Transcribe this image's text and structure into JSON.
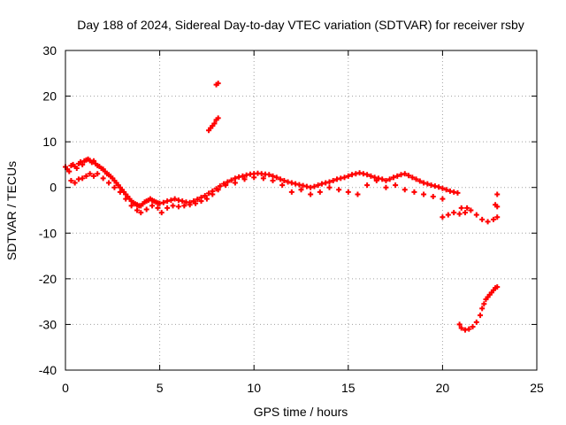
{
  "chart_data": {
    "type": "scatter",
    "title": "Day 188 of 2024, Sidereal Day-to-day VTEC variation (SDTVAR) for receiver rsby",
    "xlabel": "GPS time / hours",
    "ylabel": "SDTVAR / TECUs",
    "xlim": [
      0,
      25
    ],
    "ylim": [
      -40,
      30
    ],
    "xticks": [
      0,
      5,
      10,
      15,
      20,
      25
    ],
    "yticks": [
      -40,
      -30,
      -20,
      -10,
      0,
      10,
      20,
      30
    ],
    "grid": true,
    "marker": "+",
    "series": [
      {
        "name": "SDTVAR",
        "color": "#ff0000",
        "points": [
          [
            0.0,
            4.5
          ],
          [
            0.1,
            4.0
          ],
          [
            0.2,
            3.5
          ],
          [
            0.3,
            4.8
          ],
          [
            0.4,
            5.0
          ],
          [
            0.5,
            4.6
          ],
          [
            0.6,
            4.2
          ],
          [
            0.7,
            5.2
          ],
          [
            0.8,
            5.6
          ],
          [
            0.9,
            5.0
          ],
          [
            1.0,
            5.8
          ],
          [
            1.1,
            6.0
          ],
          [
            1.2,
            6.2
          ],
          [
            1.3,
            5.9
          ],
          [
            1.4,
            5.5
          ],
          [
            1.5,
            5.8
          ],
          [
            1.6,
            5.2
          ],
          [
            1.7,
            4.8
          ],
          [
            1.8,
            4.6
          ],
          [
            1.9,
            4.2
          ],
          [
            2.0,
            4.0
          ],
          [
            2.1,
            3.5
          ],
          [
            2.2,
            3.0
          ],
          [
            2.3,
            2.8
          ],
          [
            2.4,
            2.4
          ],
          [
            2.5,
            2.0
          ],
          [
            2.6,
            1.5
          ],
          [
            2.7,
            1.0
          ],
          [
            2.8,
            0.5
          ],
          [
            2.9,
            0.0
          ],
          [
            3.0,
            -0.5
          ],
          [
            3.1,
            -1.0
          ],
          [
            3.2,
            -1.5
          ],
          [
            3.3,
            -2.0
          ],
          [
            3.4,
            -2.5
          ],
          [
            3.5,
            -3.0
          ],
          [
            3.6,
            -3.3
          ],
          [
            3.7,
            -3.6
          ],
          [
            3.8,
            -3.8
          ],
          [
            3.9,
            -4.0
          ],
          [
            4.0,
            -4.0
          ],
          [
            4.1,
            -3.6
          ],
          [
            4.2,
            -3.2
          ],
          [
            4.3,
            -3.0
          ],
          [
            4.4,
            -2.8
          ],
          [
            4.5,
            -2.5
          ],
          [
            4.6,
            -2.8
          ],
          [
            4.7,
            -3.0
          ],
          [
            4.8,
            -3.2
          ],
          [
            4.9,
            -3.4
          ],
          [
            5.0,
            -3.5
          ],
          [
            5.2,
            -3.3
          ],
          [
            5.4,
            -3.0
          ],
          [
            5.6,
            -2.8
          ],
          [
            5.8,
            -2.5
          ],
          [
            6.0,
            -2.8
          ],
          [
            6.2,
            -3.0
          ],
          [
            6.4,
            -3.2
          ],
          [
            6.6,
            -3.3
          ],
          [
            6.8,
            -3.0
          ],
          [
            7.0,
            -2.6
          ],
          [
            7.2,
            -2.2
          ],
          [
            7.4,
            -1.8
          ],
          [
            7.6,
            -1.3
          ],
          [
            7.8,
            -0.8
          ],
          [
            8.0,
            -0.3
          ],
          [
            8.2,
            0.3
          ],
          [
            8.4,
            0.8
          ],
          [
            8.6,
            1.2
          ],
          [
            8.8,
            1.6
          ],
          [
            9.0,
            2.0
          ],
          [
            9.2,
            2.3
          ],
          [
            9.4,
            2.5
          ],
          [
            9.6,
            2.7
          ],
          [
            9.8,
            2.9
          ],
          [
            10.0,
            3.0
          ],
          [
            10.2,
            3.1
          ],
          [
            10.4,
            3.0
          ],
          [
            10.6,
            2.9
          ],
          [
            10.8,
            2.8
          ],
          [
            11.0,
            2.5
          ],
          [
            11.2,
            2.2
          ],
          [
            11.4,
            1.8
          ],
          [
            11.6,
            1.5
          ],
          [
            11.8,
            1.2
          ],
          [
            12.0,
            1.0
          ],
          [
            12.2,
            0.8
          ],
          [
            12.4,
            0.6
          ],
          [
            12.6,
            0.4
          ],
          [
            12.8,
            0.2
          ],
          [
            13.0,
            0.0
          ],
          [
            13.2,
            0.2
          ],
          [
            13.4,
            0.5
          ],
          [
            13.6,
            0.8
          ],
          [
            13.8,
            1.0
          ],
          [
            14.0,
            1.2
          ],
          [
            14.2,
            1.5
          ],
          [
            14.4,
            1.8
          ],
          [
            14.6,
            2.0
          ],
          [
            14.8,
            2.2
          ],
          [
            15.0,
            2.5
          ],
          [
            15.2,
            2.8
          ],
          [
            15.4,
            3.0
          ],
          [
            15.6,
            3.2
          ],
          [
            15.8,
            3.0
          ],
          [
            16.0,
            2.8
          ],
          [
            16.2,
            2.5
          ],
          [
            16.4,
            2.2
          ],
          [
            16.6,
            2.0
          ],
          [
            16.8,
            1.8
          ],
          [
            17.0,
            1.5
          ],
          [
            17.2,
            1.8
          ],
          [
            17.4,
            2.2
          ],
          [
            17.6,
            2.5
          ],
          [
            17.8,
            2.8
          ],
          [
            18.0,
            3.0
          ],
          [
            18.2,
            2.6
          ],
          [
            18.4,
            2.2
          ],
          [
            18.6,
            1.8
          ],
          [
            18.8,
            1.4
          ],
          [
            19.0,
            1.0
          ],
          [
            19.2,
            0.8
          ],
          [
            19.4,
            0.5
          ],
          [
            19.6,
            0.3
          ],
          [
            19.8,
            0.1
          ],
          [
            20.0,
            -0.2
          ],
          [
            20.2,
            -0.5
          ],
          [
            20.4,
            -0.8
          ],
          [
            20.6,
            -1.0
          ],
          [
            20.8,
            -1.2
          ],
          [
            0.3,
            1.5
          ],
          [
            0.5,
            1.0
          ],
          [
            0.7,
            1.8
          ],
          [
            0.9,
            2.0
          ],
          [
            1.1,
            2.5
          ],
          [
            1.3,
            3.0
          ],
          [
            1.5,
            2.5
          ],
          [
            1.7,
            3.0
          ],
          [
            2.0,
            2.0
          ],
          [
            2.3,
            1.0
          ],
          [
            2.6,
            0.0
          ],
          [
            2.9,
            -1.0
          ],
          [
            3.2,
            -2.5
          ],
          [
            3.5,
            -4.0
          ],
          [
            3.8,
            -5.0
          ],
          [
            4.0,
            -5.5
          ],
          [
            4.3,
            -4.8
          ],
          [
            4.6,
            -4.0
          ],
          [
            4.9,
            -4.5
          ],
          [
            5.1,
            -5.5
          ],
          [
            5.4,
            -4.5
          ],
          [
            5.7,
            -4.0
          ],
          [
            6.0,
            -4.2
          ],
          [
            6.3,
            -4.0
          ],
          [
            6.6,
            -3.8
          ],
          [
            6.9,
            -3.5
          ],
          [
            7.2,
            -3.0
          ],
          [
            7.5,
            -2.5
          ],
          [
            7.8,
            -1.5
          ],
          [
            8.1,
            -0.5
          ],
          [
            8.5,
            0.5
          ],
          [
            9.0,
            1.0
          ],
          [
            9.5,
            1.8
          ],
          [
            10.0,
            2.2
          ],
          [
            10.5,
            2.0
          ],
          [
            11.0,
            1.5
          ],
          [
            11.5,
            0.5
          ],
          [
            12.0,
            -1.0
          ],
          [
            12.5,
            -0.5
          ],
          [
            13.0,
            -1.5
          ],
          [
            13.5,
            -1.0
          ],
          [
            14.0,
            0.0
          ],
          [
            14.5,
            -0.5
          ],
          [
            15.0,
            -1.0
          ],
          [
            15.5,
            -1.5
          ],
          [
            16.0,
            0.5
          ],
          [
            16.5,
            1.5
          ],
          [
            17.0,
            0.0
          ],
          [
            17.5,
            0.5
          ],
          [
            18.0,
            -0.5
          ],
          [
            18.5,
            -1.0
          ],
          [
            19.0,
            -1.5
          ],
          [
            19.5,
            -2.0
          ],
          [
            20.0,
            -2.5
          ],
          [
            20.0,
            -6.5
          ],
          [
            20.3,
            -6.0
          ],
          [
            20.6,
            -5.5
          ],
          [
            20.9,
            -5.8
          ],
          [
            21.2,
            -5.5
          ],
          [
            21.5,
            -5.0
          ],
          [
            21.8,
            -6.0
          ],
          [
            22.1,
            -7.0
          ],
          [
            22.4,
            -7.5
          ],
          [
            22.7,
            -7.0
          ],
          [
            22.9,
            -6.5
          ],
          [
            21.0,
            -4.5
          ],
          [
            21.3,
            -4.5
          ],
          [
            22.8,
            -3.8
          ],
          [
            22.9,
            -4.2
          ],
          [
            22.9,
            -1.5
          ],
          [
            20.9,
            -30.0
          ],
          [
            21.0,
            -30.8
          ],
          [
            21.2,
            -31.2
          ],
          [
            21.4,
            -31.0
          ],
          [
            21.6,
            -30.5
          ],
          [
            21.8,
            -29.5
          ],
          [
            22.0,
            -28.0
          ],
          [
            22.1,
            -26.5
          ],
          [
            22.2,
            -25.5
          ],
          [
            22.3,
            -24.5
          ],
          [
            22.4,
            -24.0
          ],
          [
            22.5,
            -23.5
          ],
          [
            22.6,
            -23.0
          ],
          [
            22.7,
            -22.5
          ],
          [
            22.8,
            -22.0
          ],
          [
            22.9,
            -21.8
          ],
          [
            7.6,
            12.5
          ],
          [
            7.7,
            13.0
          ],
          [
            7.8,
            13.5
          ],
          [
            7.9,
            14.0
          ],
          [
            8.0,
            14.8
          ],
          [
            8.1,
            15.2
          ],
          [
            8.0,
            22.5
          ],
          [
            8.1,
            22.8
          ]
        ]
      }
    ]
  }
}
